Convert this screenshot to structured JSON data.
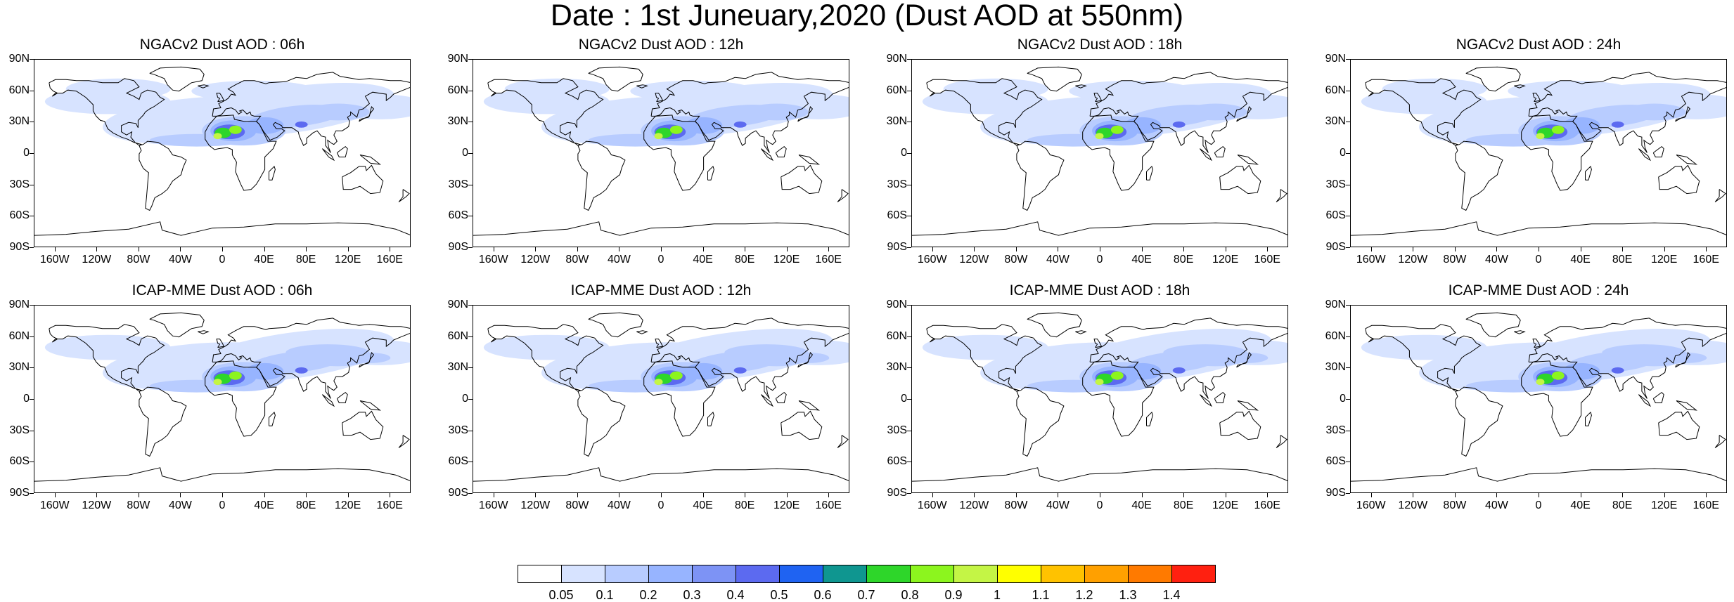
{
  "title": "Date : 1st Juneuary,2020 (Dust AOD at 550nm)",
  "panels": [
    {
      "title": "NGACv2 Dust AOD : 06h"
    },
    {
      "title": "NGACv2 Dust AOD : 12h"
    },
    {
      "title": "NGACv2 Dust AOD : 18h"
    },
    {
      "title": "NGACv2 Dust AOD : 24h"
    },
    {
      "title": "ICAP-MME Dust AOD : 06h"
    },
    {
      "title": "ICAP-MME Dust AOD : 12h"
    },
    {
      "title": "ICAP-MME Dust AOD : 18h"
    },
    {
      "title": "ICAP-MME Dust AOD : 24h"
    }
  ],
  "lat_labels": [
    "90N",
    "60N",
    "30N",
    "0",
    "30S",
    "60S",
    "90S"
  ],
  "lon_labels": [
    "160W",
    "120W",
    "80W",
    "40W",
    "0",
    "40E",
    "80E",
    "120E",
    "160E"
  ],
  "colorbar": {
    "labels": [
      "0.05",
      "0.1",
      "0.2",
      "0.3",
      "0.4",
      "0.5",
      "0.6",
      "0.7",
      "0.8",
      "0.9",
      "1",
      "1.1",
      "1.2",
      "1.3",
      "1.4"
    ],
    "colors": [
      "#ffffff",
      "#d7e3ff",
      "#b8ccff",
      "#97b4ff",
      "#7d93f5",
      "#5c6af0",
      "#1f63f2",
      "#0f9690",
      "#2ed62a",
      "#8cf51e",
      "#c4f545",
      "#ffff00",
      "#ffc200",
      "#ffa000",
      "#ff7a00",
      "#ff2010"
    ]
  },
  "map_colors": {
    "land_line": "#000000"
  }
}
